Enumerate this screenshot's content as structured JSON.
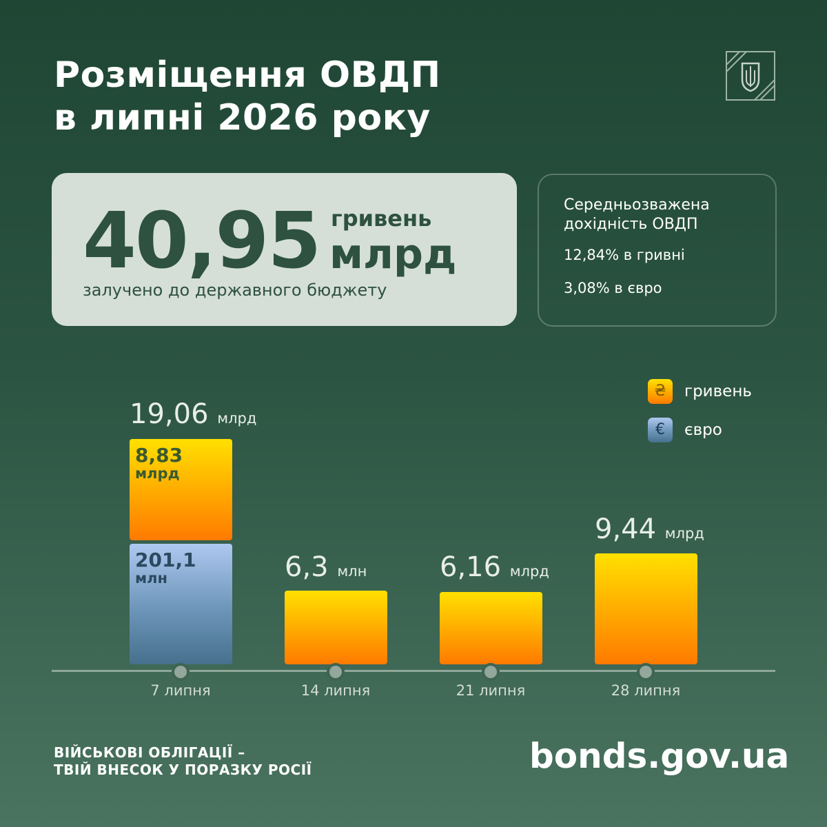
{
  "header": {
    "title": [
      "Розміщення ОВДП",
      "в липні 2026 року"
    ]
  },
  "total": {
    "amount": "40,95",
    "unit_currency": "гривень",
    "unit_scale": "млрд",
    "caption": "залучено до державного бюджету"
  },
  "yield": {
    "title": [
      "Середньозважена",
      "дохідність ОВДП"
    ],
    "items": [
      "12,84% в гривні",
      "3,08% в євро"
    ]
  },
  "legend": [
    {
      "symbol": "₴",
      "label": "гривень"
    },
    {
      "symbol": "€",
      "label": "євро"
    }
  ],
  "weeks": [
    {
      "date": "7 липня",
      "total": {
        "amount": "19,06",
        "unit": "млрд"
      },
      "segments": [
        {
          "amount": "8,83",
          "unit": "млрд"
        },
        {
          "amount": "201,1",
          "unit": "млн"
        }
      ]
    },
    {
      "date": "14 липня",
      "total": {
        "amount": "6,3",
        "unit": "млн"
      }
    },
    {
      "date": "21 липня",
      "total": {
        "amount": "6,16",
        "unit": "млрд"
      }
    },
    {
      "date": "28 липня",
      "total": {
        "amount": "9,44",
        "unit": "млрд"
      }
    }
  ],
  "footer": {
    "slogan": [
      "ВІЙСЬКОВІ ОБЛІГАЦІЇ –",
      "ТВІЙ ВНЕСОК У ПОРАЗКУ РОСІЇ"
    ],
    "site": "bonds.gov.ua"
  }
}
